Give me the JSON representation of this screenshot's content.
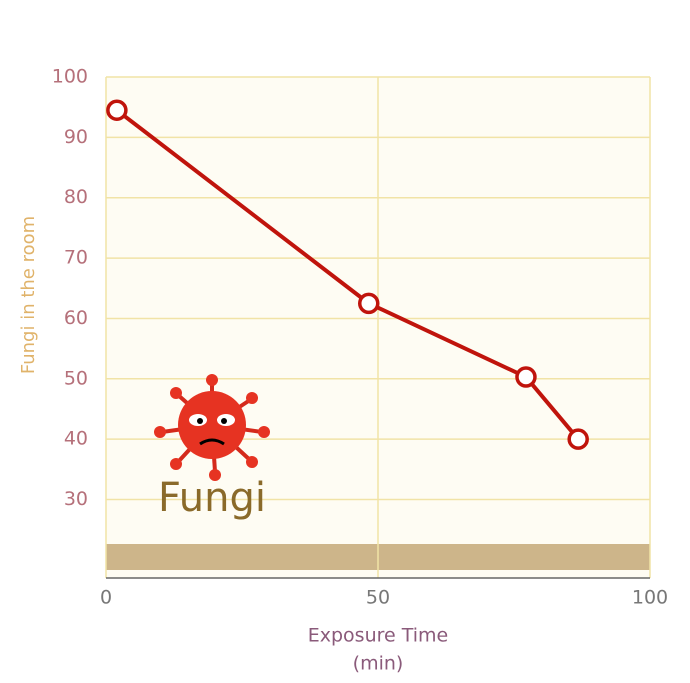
{
  "chart_data": {
    "type": "line",
    "x": [
      2,
      48.3,
      77.2,
      86.8
    ],
    "series": [
      {
        "name": "Fungi",
        "color": "#c0140c",
        "values": [
          94.5,
          62.5,
          50.3,
          40
        ]
      }
    ],
    "xlabel": "Exposure Time",
    "xlabel_unit": "(min)",
    "ylabel": "Fungi in the room",
    "annotation": "Fungi",
    "xlim": [
      0,
      100
    ],
    "xticks": [
      0,
      50,
      100
    ],
    "ylim": [
      17,
      100
    ],
    "yticks": [
      30,
      40,
      50,
      60,
      70,
      80,
      90,
      100
    ],
    "grid": true
  }
}
